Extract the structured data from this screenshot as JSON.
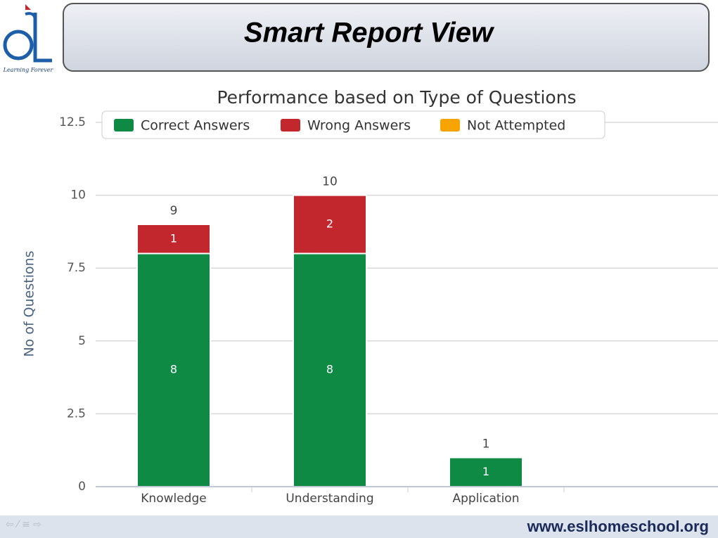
{
  "header": {
    "title": "Smart Report View",
    "logo_tagline": "Learning Forever"
  },
  "footer": {
    "url": "www.eslhomeschool.org"
  },
  "chart_data": {
    "type": "stacked-bar",
    "title": "Performance based on Type of Questions",
    "y_label": "No of Questions",
    "categories": [
      "Knowledge",
      "Understanding",
      "Application"
    ],
    "series": [
      {
        "name": "Correct Answers",
        "color": "#0e8a45",
        "values": [
          8,
          8,
          1
        ]
      },
      {
        "name": "Wrong Answers",
        "color": "#c1272d",
        "values": [
          1,
          2,
          0
        ]
      },
      {
        "name": "Not Attempted",
        "color": "#f7a400",
        "values": [
          0,
          0,
          0
        ]
      }
    ],
    "stack_totals": [
      9,
      10,
      1
    ],
    "ylim": [
      0,
      12.5
    ],
    "yticks": [
      0,
      2.5,
      5,
      7.5,
      10,
      12.5
    ],
    "grid": true,
    "legend": "top"
  }
}
